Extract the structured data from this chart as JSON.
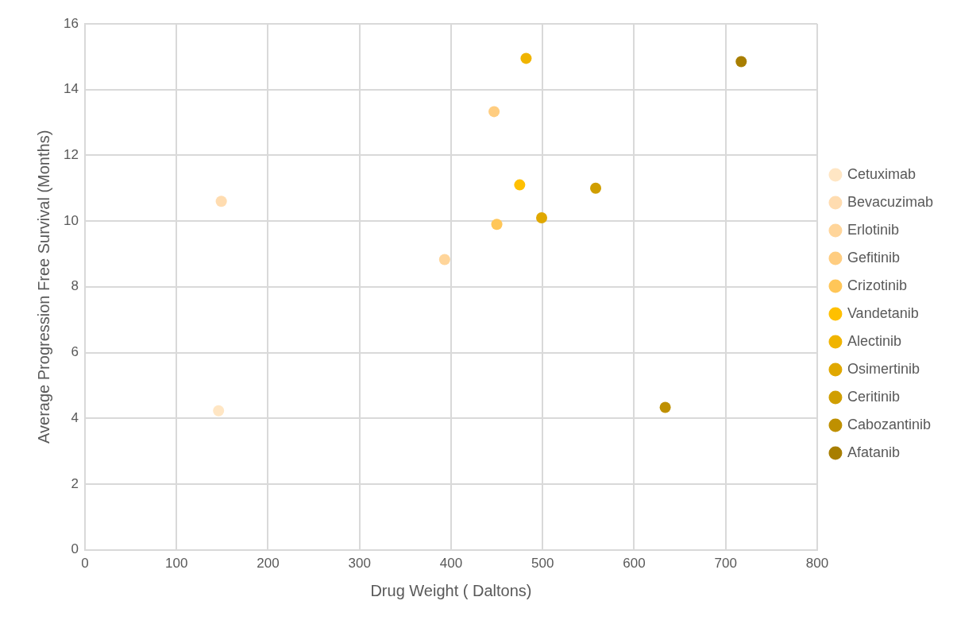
{
  "chart_data": {
    "type": "scatter",
    "xlabel": "Drug Weight ( Daltons)",
    "ylabel": "Average Progression Free Survival (Months)",
    "xlim": [
      0,
      800
    ],
    "xticks": [
      0,
      100,
      200,
      300,
      400,
      500,
      600,
      700,
      800
    ],
    "ylim": [
      0,
      16
    ],
    "yticks": [
      0,
      2,
      4,
      6,
      8,
      10,
      12,
      14,
      16
    ],
    "grid": true,
    "legend": "right",
    "marker": "circle",
    "series": [
      {
        "name": "Cetuximab",
        "color": "#ffe6c4",
        "x": [
          146
        ],
        "values": [
          4.23
        ]
      },
      {
        "name": "Bevacuzimab",
        "color": "#ffdcb0",
        "x": [
          149
        ],
        "values": [
          10.6
        ]
      },
      {
        "name": "Erlotinib",
        "color": "#ffd59a",
        "x": [
          393
        ],
        "values": [
          8.83
        ]
      },
      {
        "name": "Gefitinib",
        "color": "#ffcd80",
        "x": [
          447
        ],
        "values": [
          13.33
        ]
      },
      {
        "name": "Crizotinib",
        "color": "#ffc658",
        "x": [
          450
        ],
        "values": [
          9.9
        ]
      },
      {
        "name": "Vandetanib",
        "color": "#ffc000",
        "x": [
          475
        ],
        "values": [
          11.1
        ]
      },
      {
        "name": "Alectinib",
        "color": "#f0b400",
        "x": [
          482
        ],
        "values": [
          14.95
        ]
      },
      {
        "name": "Osimertinib",
        "color": "#e0a800",
        "x": [
          499
        ],
        "values": [
          10.1
        ]
      },
      {
        "name": "Ceritinib",
        "color": "#d09e00",
        "x": [
          558
        ],
        "values": [
          11.0
        ]
      },
      {
        "name": "Cabozantinib",
        "color": "#bf9000",
        "x": [
          634
        ],
        "values": [
          4.33
        ]
      },
      {
        "name": "Afatanib",
        "color": "#a87e00",
        "x": [
          717
        ],
        "values": [
          14.85
        ]
      }
    ]
  }
}
